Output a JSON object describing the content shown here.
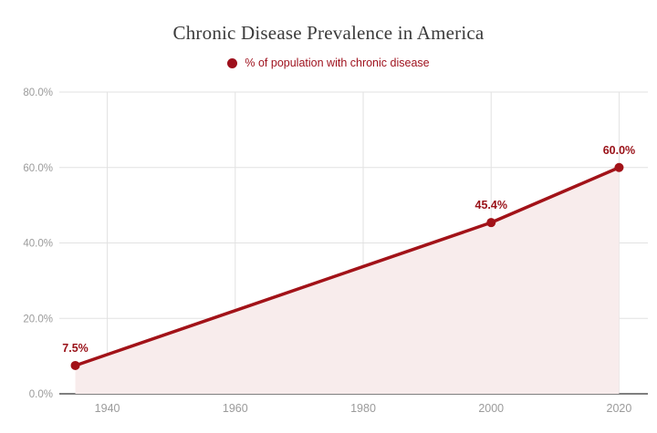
{
  "header": {
    "title": "Chronic Disease Prevalence in America",
    "title_color": "#3b3b3b"
  },
  "legend": {
    "label": "% of population with chronic disease",
    "marker_color": "#9e101c",
    "text_color": "#9e101c"
  },
  "chart_data": {
    "type": "line",
    "title": "Chronic Disease Prevalence in America",
    "legend_entries": [
      "% of population with chronic disease"
    ],
    "legend_position": "top-center",
    "x": [
      1935,
      2000,
      2020
    ],
    "series": [
      {
        "name": "% of population with chronic disease",
        "values": [
          7.5,
          45.4,
          60.0
        ]
      }
    ],
    "point_labels": [
      "7.5%",
      "45.4%",
      "60.0%"
    ],
    "x_ticks": [
      1940,
      1960,
      1980,
      2000,
      2020
    ],
    "x_tick_labels": [
      "1940",
      "1960",
      "1980",
      "2000",
      "2020"
    ],
    "y_ticks": [
      0,
      20,
      40,
      60,
      80
    ],
    "y_tick_labels": [
      "0.0%",
      "20.0%",
      "40.0%",
      "60.0%",
      "80.0%"
    ],
    "xlim": [
      1932.5,
      2024.5
    ],
    "ylim": [
      0,
      80
    ],
    "grid": true,
    "area_fill": true,
    "xlabel": "",
    "ylabel": "",
    "colors": {
      "line": "#a21218",
      "marker": "#a21218",
      "point_label": "#991118",
      "fill": "#f8ecec",
      "grid": "#e2e2e2",
      "axis": "#555555",
      "tick_label": "#9b9b9b"
    }
  }
}
